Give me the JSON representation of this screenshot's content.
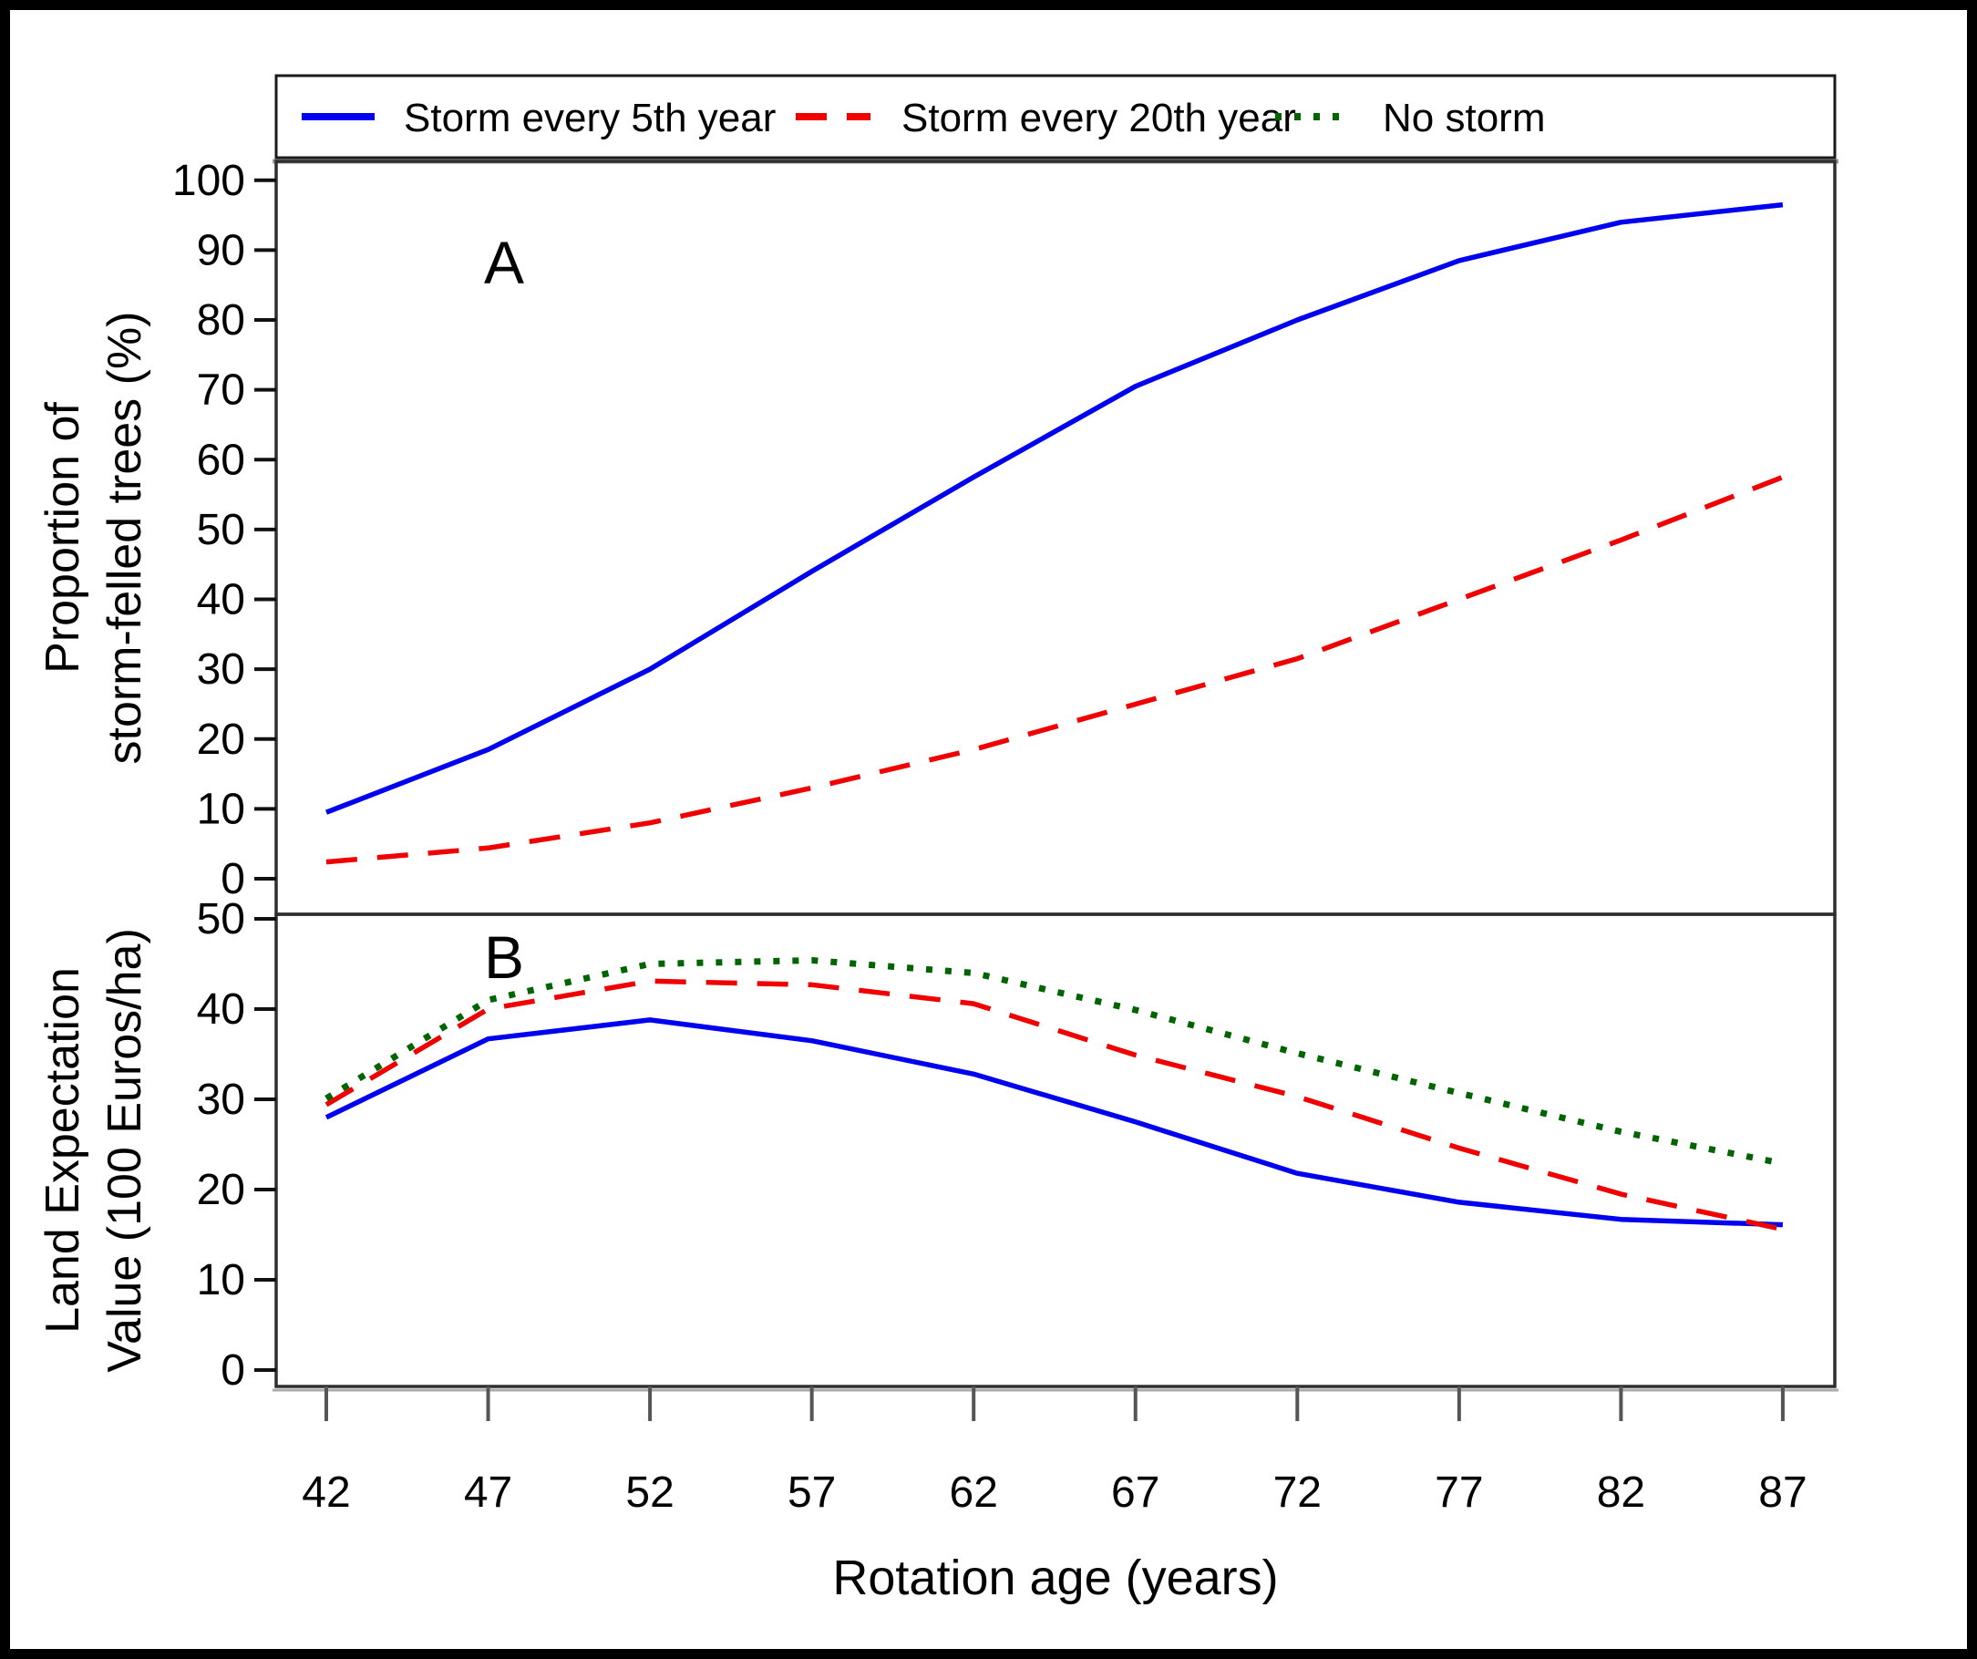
{
  "legend": {
    "items": [
      {
        "label": "Storm every 5th year",
        "color": "#0000f0",
        "style": "solid"
      },
      {
        "label": "Storm every 20th year",
        "color": "#f00000",
        "style": "dashed"
      },
      {
        "label": "No storm",
        "color": "#006400",
        "style": "dotted"
      }
    ]
  },
  "x_axis": {
    "title": "Rotation age (years)",
    "ticks": [
      "42",
      "47",
      "52",
      "57",
      "62",
      "67",
      "72",
      "77",
      "82",
      "87"
    ]
  },
  "panel_a": {
    "letter": "A",
    "ylabel_line1": "Proportion of",
    "ylabel_line2": "storm-felled trees (%)",
    "yticks": [
      "0",
      "10",
      "20",
      "30",
      "40",
      "50",
      "60",
      "70",
      "80",
      "90",
      "100"
    ]
  },
  "panel_b": {
    "letter": "B",
    "ylabel_line1": "Land Expectation",
    "ylabel_line2": "Value (100 Euros/ha)",
    "yticks": [
      "0",
      "10",
      "20",
      "30",
      "40",
      "50"
    ]
  },
  "chart_data": [
    {
      "type": "line",
      "panel": "A",
      "title": "",
      "xlabel": "Rotation age (years)",
      "ylabel": "Proportion of storm-felled trees (%)",
      "x": [
        42,
        47,
        52,
        57,
        62,
        67,
        72,
        77,
        82,
        87
      ],
      "xlim": [
        40.5,
        88.6
      ],
      "ylim": [
        0,
        107
      ],
      "grid": false,
      "legend_position": "top",
      "series": [
        {
          "name": "Storm every 5th year",
          "color": "#0000f0",
          "style": "solid",
          "values": [
            9.5,
            18.5,
            30,
            44,
            57.5,
            70.5,
            80,
            88.5,
            94,
            96.5
          ]
        },
        {
          "name": "Storm every 20th year",
          "color": "#f00000",
          "style": "dashed",
          "values": [
            2.4,
            4.4,
            8,
            13,
            18.5,
            25,
            31.5,
            40,
            48.5,
            57.5
          ]
        }
      ]
    },
    {
      "type": "line",
      "panel": "B",
      "title": "",
      "xlabel": "Rotation age (years)",
      "ylabel": "Land Expectation Value (100 Euros/ha)",
      "x": [
        42,
        47,
        52,
        57,
        62,
        67,
        72,
        77,
        82,
        87
      ],
      "xlim": [
        40.5,
        88.6
      ],
      "ylim": [
        0,
        52
      ],
      "grid": false,
      "series": [
        {
          "name": "Storm every 5th year",
          "color": "#0000f0",
          "style": "solid",
          "values": [
            28.0,
            36.7,
            38.8,
            36.5,
            32.8,
            27.5,
            21.8,
            18.6,
            16.7,
            16.1
          ]
        },
        {
          "name": "Storm every 20th year",
          "color": "#f00000",
          "style": "dashed",
          "values": [
            29.4,
            40.0,
            43.1,
            42.7,
            40.6,
            34.9,
            30.3,
            24.6,
            19.5,
            15.6
          ]
        },
        {
          "name": "No storm",
          "color": "#006400",
          "style": "dotted",
          "values": [
            30.1,
            41.0,
            45.0,
            45.4,
            44.0,
            39.9,
            35.1,
            30.7,
            26.4,
            22.9
          ]
        }
      ]
    }
  ]
}
